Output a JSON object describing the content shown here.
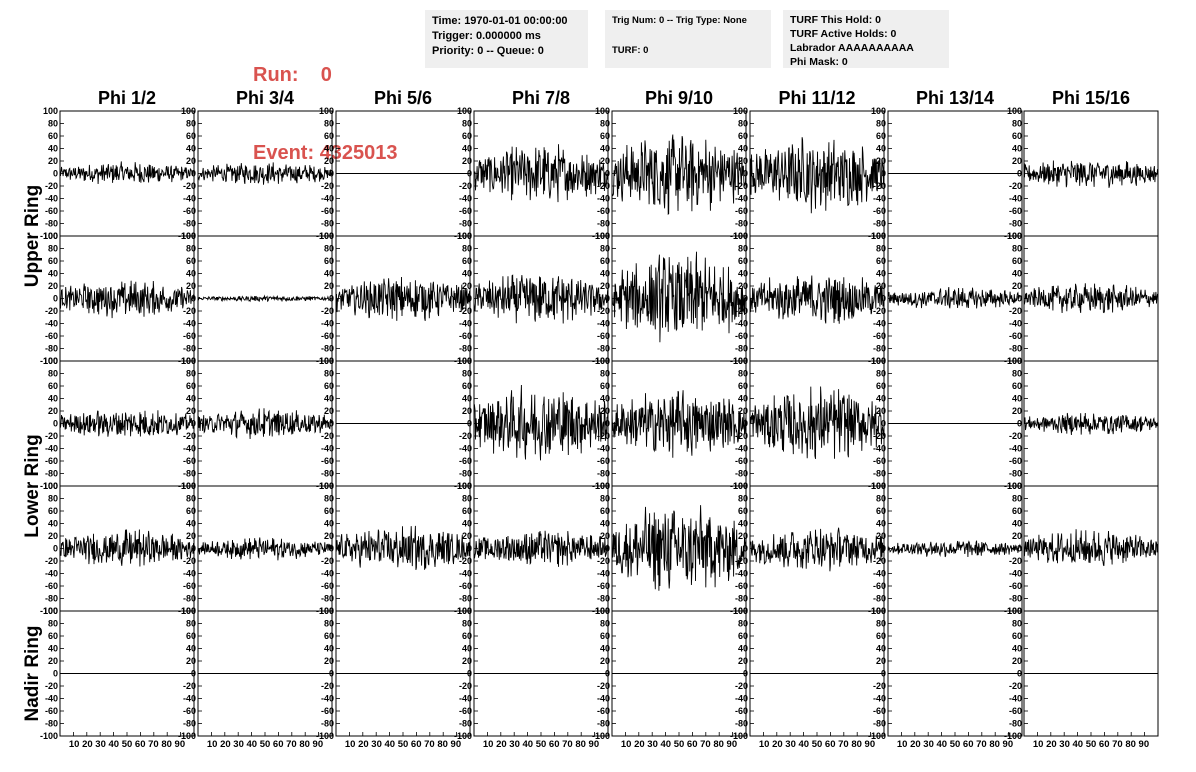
{
  "run": {
    "run_label": "Run:",
    "run_value": "0",
    "event_label": "Event:",
    "event_value": "4325013"
  },
  "header_box1": {
    "time": "Time: 1970-01-01 00:00:00",
    "trigger": "Trigger: 0.000000 ms",
    "priority": "Priority: 0 -- Queue: 0"
  },
  "header_box2": {
    "trig": "Trig Num: 0 -- Trig Type: None",
    "turf": "TURF: 0"
  },
  "header_box3": {
    "hold": "TURF This Hold: 0",
    "active": "TURF Active Holds: 0",
    "labrador": "Labrador AAAAAAAAAA",
    "phimask": "Phi Mask: 0"
  },
  "chart_data": {
    "type": "line",
    "columns": [
      "Phi 1/2",
      "Phi 3/4",
      "Phi 5/6",
      "Phi 7/8",
      "Phi 9/10",
      "Phi 11/12",
      "Phi 13/14",
      "Phi 15/16"
    ],
    "ring_labels": [
      "Upper Ring",
      "Lower Ring",
      "Nadir Ring"
    ],
    "rows_per_ring": [
      2,
      2,
      1
    ],
    "xlim": [
      0,
      100
    ],
    "ylim": [
      -100,
      100
    ],
    "x_ticks": [
      "0",
      "10",
      "20",
      "30",
      "40",
      "50",
      "60",
      "70",
      "80",
      "90",
      "100"
    ],
    "x_tick_text": "10 20 30 40 50 60 70 80 90",
    "y_ticks": [
      "100",
      "80",
      "60",
      "40",
      "20",
      "0",
      "-20",
      "-40",
      "-60",
      "-80",
      "-100"
    ],
    "line_color": "#000000",
    "waveform_amplitude_estimate": [
      [
        15,
        15,
        0,
        40,
        55,
        50,
        0,
        20
      ],
      [
        25,
        4,
        30,
        35,
        60,
        35,
        15,
        20
      ],
      [
        20,
        20,
        0,
        50,
        45,
        50,
        0,
        15
      ],
      [
        25,
        15,
        30,
        25,
        60,
        30,
        12,
        25
      ],
      [
        0,
        0,
        0,
        0,
        0,
        0,
        0,
        0
      ]
    ]
  }
}
